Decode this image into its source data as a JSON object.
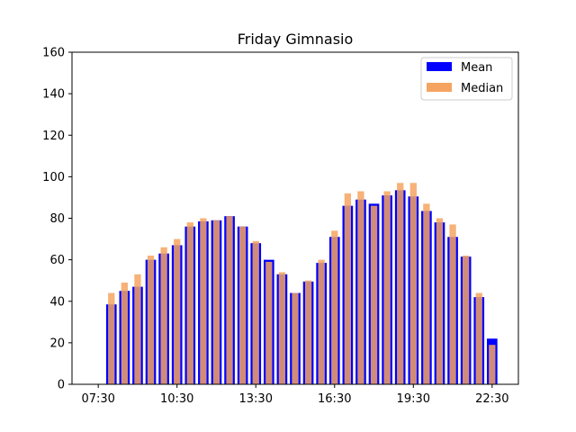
{
  "chart_data": {
    "type": "bar",
    "title": "Friday Gimnasio",
    "xlabel": "",
    "ylabel": "",
    "ylim": [
      0,
      160
    ],
    "yticks": [
      0,
      20,
      40,
      60,
      80,
      100,
      120,
      140,
      160
    ],
    "xlim_hours": [
      6.5,
      23.5
    ],
    "xtick_labels": [
      "07:30",
      "10:30",
      "13:30",
      "16:30",
      "19:30",
      "22:30"
    ],
    "xtick_hours": [
      7.5,
      10.5,
      13.5,
      16.5,
      19.5,
      22.5
    ],
    "categories": [
      "08:00",
      "08:30",
      "09:00",
      "09:30",
      "10:00",
      "10:30",
      "11:00",
      "11:30",
      "12:00",
      "12:30",
      "13:00",
      "13:30",
      "14:00",
      "14:30",
      "15:00",
      "15:30",
      "16:00",
      "16:30",
      "17:00",
      "17:30",
      "18:00",
      "18:30",
      "19:00",
      "19:30",
      "20:00",
      "20:30",
      "21:00",
      "21:30",
      "22:00",
      "22:30"
    ],
    "series": [
      {
        "name": "Mean",
        "color": "#0000ff",
        "values": [
          38.5,
          45,
          47,
          60,
          63,
          67,
          76,
          78.5,
          79,
          81,
          76,
          68,
          60,
          53,
          44,
          49.5,
          58.5,
          71,
          86,
          89,
          87,
          91,
          93.5,
          90.5,
          83.5,
          78,
          71,
          61.5,
          42,
          22
        ]
      },
      {
        "name": "Median",
        "color": "#f4a460",
        "values": [
          44,
          49,
          53,
          62,
          66,
          70,
          78,
          80,
          79,
          81,
          76,
          69,
          59,
          54,
          44,
          50,
          60,
          74,
          92,
          93,
          86,
          93,
          97,
          97,
          87,
          80,
          77,
          62,
          44,
          19
        ]
      }
    ],
    "legend_position": "top-right",
    "grid": false
  }
}
